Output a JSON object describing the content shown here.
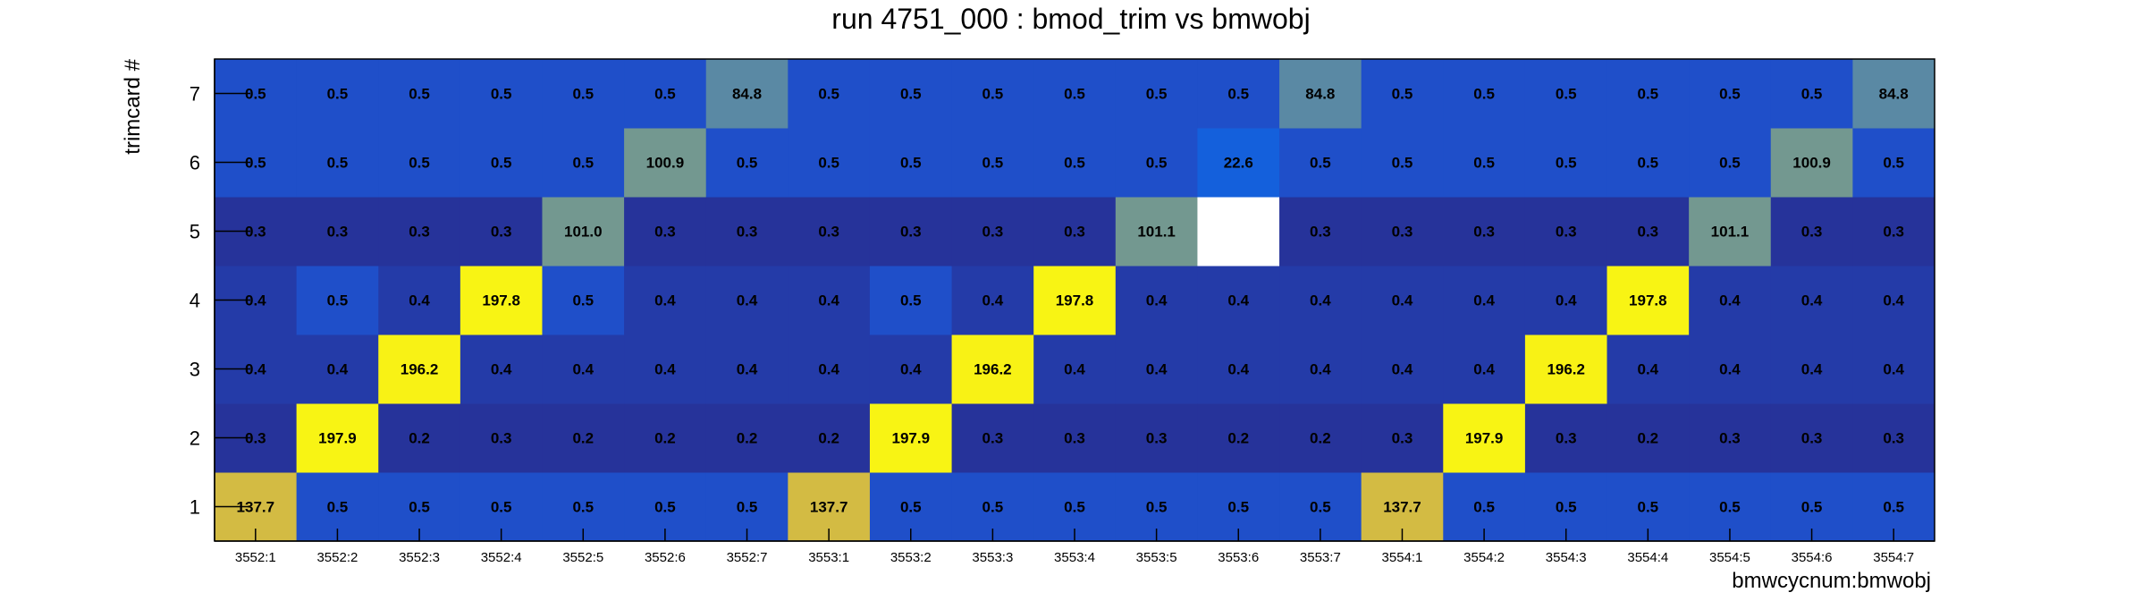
{
  "chart_data": {
    "type": "heatmap",
    "title": "run 4751_000 : bmod_trim vs bmwobj",
    "xlabel": "bmwcycnum:bmwobj",
    "ylabel": "trimcard #",
    "x_categories": [
      "3552:1",
      "3552:2",
      "3552:3",
      "3552:4",
      "3552:5",
      "3552:6",
      "3552:7",
      "3553:1",
      "3553:2",
      "3553:3",
      "3553:4",
      "3553:5",
      "3553:6",
      "3553:7",
      "3554:1",
      "3554:2",
      "3554:3",
      "3554:4",
      "3554:5",
      "3554:6",
      "3554:7"
    ],
    "y_categories": [
      "1",
      "2",
      "3",
      "4",
      "5",
      "6",
      "7"
    ],
    "values": [
      [
        137.7,
        0.5,
        0.5,
        0.5,
        0.5,
        0.5,
        0.5,
        137.7,
        0.5,
        0.5,
        0.5,
        0.5,
        0.5,
        0.5,
        137.7,
        0.5,
        0.5,
        0.5,
        0.5,
        0.5,
        0.5
      ],
      [
        0.3,
        197.9,
        0.2,
        0.3,
        0.2,
        0.2,
        0.2,
        0.2,
        197.9,
        0.3,
        0.3,
        0.3,
        0.2,
        0.2,
        0.3,
        197.9,
        0.3,
        0.2,
        0.3,
        0.3,
        0.3
      ],
      [
        0.4,
        0.4,
        196.2,
        0.4,
        0.4,
        0.4,
        0.4,
        0.4,
        0.4,
        196.2,
        0.4,
        0.4,
        0.4,
        0.4,
        0.4,
        0.4,
        196.2,
        0.4,
        0.4,
        0.4,
        0.4
      ],
      [
        0.4,
        0.5,
        0.4,
        197.8,
        0.5,
        0.4,
        0.4,
        0.4,
        0.5,
        0.4,
        197.8,
        0.4,
        0.4,
        0.4,
        0.4,
        0.4,
        0.4,
        197.8,
        0.4,
        0.4,
        0.4
      ],
      [
        0.3,
        0.3,
        0.3,
        0.3,
        101.0,
        0.3,
        0.3,
        0.3,
        0.3,
        0.3,
        0.3,
        101.1,
        null,
        0.3,
        0.3,
        0.3,
        0.3,
        0.3,
        101.1,
        0.3,
        0.3
      ],
      [
        0.5,
        0.5,
        0.5,
        0.5,
        0.5,
        100.9,
        0.5,
        0.5,
        0.5,
        0.5,
        0.5,
        0.5,
        22.6,
        0.5,
        0.5,
        0.5,
        0.5,
        0.5,
        0.5,
        100.9,
        0.5
      ],
      [
        0.5,
        0.5,
        0.5,
        0.5,
        0.5,
        0.5,
        84.8,
        0.5,
        0.5,
        0.5,
        0.5,
        0.5,
        0.5,
        84.8,
        0.5,
        0.5,
        0.5,
        0.5,
        0.5,
        0.5,
        84.8
      ]
    ],
    "value_format_decimals": 1,
    "colors": {
      "empty": "#ffffff",
      "background": "#ffffff",
      "frame": "#000000",
      "scale": [
        [
          0.0,
          "#26339a"
        ],
        [
          0.0008,
          "#26339a"
        ],
        [
          0.0015,
          "#1f4fc8"
        ],
        [
          0.0021,
          "#1460dc"
        ],
        [
          0.2,
          "#1460dc"
        ],
        [
          0.55,
          "#7f9f86"
        ],
        [
          0.75,
          "#f2c52a"
        ],
        [
          1.0,
          "#f8f414"
        ]
      ],
      "scale_range": [
        0.2,
        197.9
      ]
    },
    "grid": false,
    "legend": "none"
  }
}
